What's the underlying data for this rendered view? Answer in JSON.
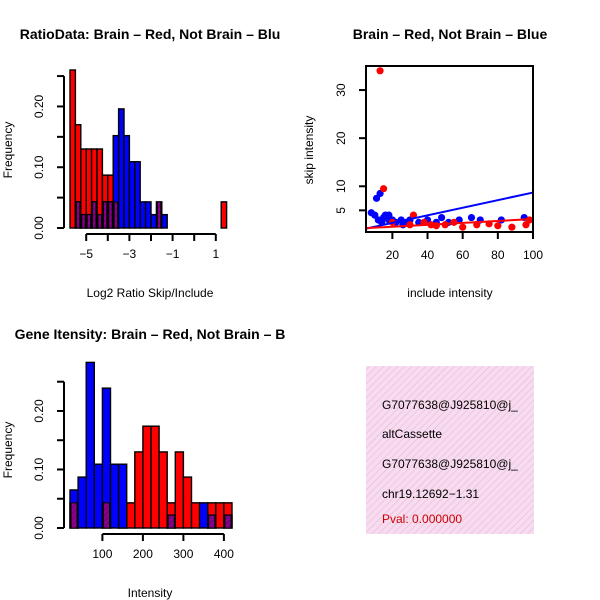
{
  "colors": {
    "red": "#ff0000",
    "blue": "#0000ff",
    "purple": "#7f007f",
    "axis": "#000000",
    "info_bg": "#f7dcef",
    "info_hatch": "#e8a6d4",
    "pval": "#cc0000"
  },
  "chart_data": [
    {
      "id": "ratio_hist",
      "type": "histogram",
      "title": "RatioData: Brain – Red, Not Brain – Blu",
      "xlabel": "Log2 Ratio Skip/Include",
      "ylabel": "Frequency",
      "xlim": [
        -5.75,
        1.75
      ],
      "ylim": [
        0,
        0.26
      ],
      "xticks": [
        -5,
        -3,
        -1,
        1
      ],
      "xtick_labels": [
        "−5",
        "−3",
        "−1",
        "1"
      ],
      "yticks": [
        0,
        0.1,
        0.2
      ],
      "ytick_labels": [
        "0.00",
        "0.10",
        "0.20"
      ],
      "bin_width": 0.25,
      "series": [
        {
          "name": "Brain",
          "color": "red",
          "bins": [
            [
              -5.75,
              0.26
            ],
            [
              -5.5,
              0.17
            ],
            [
              -5.25,
              0.13
            ],
            [
              -5.0,
              0.13
            ],
            [
              -4.75,
              0.13
            ],
            [
              -4.5,
              0.13
            ],
            [
              -4.25,
              0.087
            ],
            [
              -4.0,
              0.087
            ],
            [
              -3.75,
              0.043
            ],
            [
              -1.75,
              0.043
            ],
            [
              -1.5,
              0.0
            ],
            [
              -1.25,
              0.0
            ],
            [
              -0.75,
              0.0
            ],
            [
              1.25,
              0.043
            ]
          ]
        },
        {
          "name": "Not Brain",
          "color": "blue",
          "bins": [
            [
              -5.5,
              0.043
            ],
            [
              -5.25,
              0.022
            ],
            [
              -5.0,
              0.022
            ],
            [
              -4.75,
              0.043
            ],
            [
              -4.5,
              0.022
            ],
            [
              -4.25,
              0.043
            ],
            [
              -4.0,
              0.043
            ],
            [
              -3.75,
              0.152
            ],
            [
              -3.5,
              0.196
            ],
            [
              -3.25,
              0.152
            ],
            [
              -3.0,
              0.109
            ],
            [
              -2.75,
              0.109
            ],
            [
              -2.5,
              0.043
            ],
            [
              -2.25,
              0.043
            ],
            [
              -2.0,
              0.022
            ],
            [
              -1.5,
              0.022
            ]
          ]
        }
      ],
      "overlap": [
        [
          -5.5,
          0.043
        ],
        [
          -5.25,
          0.022
        ],
        [
          -5.0,
          0.022
        ],
        [
          -4.75,
          0.043
        ],
        [
          -4.5,
          0.022
        ],
        [
          -4.25,
          0.043
        ],
        [
          -4.0,
          0.043
        ],
        [
          -3.75,
          0.043
        ],
        [
          -1.75,
          0.043
        ]
      ]
    },
    {
      "id": "scatter",
      "type": "scatter",
      "title": "Brain – Red, Not Brain – Blue",
      "xlabel": "include intensity",
      "ylabel": "skip intensity",
      "xlim": [
        5,
        100
      ],
      "ylim": [
        0.5,
        35
      ],
      "xticks": [
        20,
        40,
        60,
        80,
        100
      ],
      "yticks": [
        5,
        10,
        20,
        30
      ],
      "series": [
        {
          "name": "Not Brain",
          "color": "blue",
          "points": [
            [
              8,
              4.5
            ],
            [
              10,
              4
            ],
            [
              12,
              3
            ],
            [
              14,
              2.5
            ],
            [
              15,
              3.5
            ],
            [
              11,
              7.5
            ],
            [
              13,
              8.5
            ],
            [
              16,
              4
            ],
            [
              18,
              3
            ],
            [
              20,
              3
            ],
            [
              22,
              2.5
            ],
            [
              25,
              3
            ],
            [
              28,
              2.5
            ],
            [
              30,
              3
            ],
            [
              35,
              2.5
            ],
            [
              40,
              3
            ],
            [
              45,
              2.5
            ],
            [
              48,
              3.5
            ],
            [
              52,
              2.5
            ],
            [
              58,
              3
            ],
            [
              65,
              3.5
            ],
            [
              70,
              3
            ],
            [
              82,
              3
            ],
            [
              95,
              3.5
            ],
            [
              18,
              4
            ],
            [
              26,
              2
            ]
          ]
        },
        {
          "name": "Brain",
          "color": "red",
          "points": [
            [
              13,
              34
            ],
            [
              15,
              9.5
            ],
            [
              20,
              2.5
            ],
            [
              30,
              2
            ],
            [
              32,
              4
            ],
            [
              38,
              2.5
            ],
            [
              42,
              2
            ],
            [
              45,
              1.8
            ],
            [
              50,
              2
            ],
            [
              55,
              2.5
            ],
            [
              60,
              1.5
            ],
            [
              68,
              2
            ],
            [
              75,
              2.2
            ],
            [
              80,
              1.8
            ],
            [
              88,
              1.5
            ],
            [
              96,
              2
            ],
            [
              98,
              3
            ]
          ]
        }
      ],
      "fit_lines": [
        {
          "color": "blue",
          "from": [
            5,
            1.2
          ],
          "to": [
            100,
            8.7
          ]
        },
        {
          "color": "red",
          "from": [
            5,
            1.3
          ],
          "to": [
            100,
            3.2
          ]
        }
      ]
    },
    {
      "id": "intensity_hist",
      "type": "histogram",
      "title": "Gene Itensity: Brain – Red, Not Brain – B",
      "xlabel": "Intensity",
      "ylabel": "Frequency",
      "xlim": [
        20,
        420
      ],
      "ylim": [
        0,
        0.27
      ],
      "xticks": [
        100,
        200,
        300,
        400
      ],
      "xtick_labels": [
        "100",
        "200",
        "300",
        "400"
      ],
      "yticks": [
        0,
        0.1,
        0.2
      ],
      "ytick_labels": [
        "0.00",
        "0.10",
        "0.20"
      ],
      "bin_width": 20,
      "series": [
        {
          "name": "Brain",
          "color": "red",
          "bins": [
            [
              20,
              0.043
            ],
            [
              100,
              0.043
            ],
            [
              140,
              0.043
            ],
            [
              160,
              0.043
            ],
            [
              180,
              0.13
            ],
            [
              200,
              0.174
            ],
            [
              220,
              0.174
            ],
            [
              240,
              0.13
            ],
            [
              260,
              0.043
            ],
            [
              280,
              0.13
            ],
            [
              300,
              0.087
            ],
            [
              320,
              0.043
            ],
            [
              360,
              0.043
            ],
            [
              380,
              0.043
            ],
            [
              400,
              0.043
            ]
          ]
        },
        {
          "name": "Not Brain",
          "color": "blue",
          "bins": [
            [
              20,
              0.065
            ],
            [
              40,
              0.087
            ],
            [
              60,
              0.283
            ],
            [
              80,
              0.109
            ],
            [
              100,
              0.239
            ],
            [
              120,
              0.109
            ],
            [
              140,
              0.109
            ],
            [
              260,
              0.022
            ],
            [
              340,
              0.043
            ],
            [
              360,
              0.022
            ],
            [
              400,
              0.022
            ]
          ]
        }
      ],
      "overlap": [
        [
          20,
          0.043
        ],
        [
          100,
          0.043
        ],
        [
          260,
          0.022
        ],
        [
          360,
          0.022
        ],
        [
          400,
          0.022
        ]
      ]
    }
  ],
  "info_panel": {
    "lines": [
      "G7077638@J925810@j_",
      "altCassette",
      "G7077638@J925810@j_",
      "chr19.12692−1.31"
    ],
    "pval": "Pval: 0.000000"
  }
}
